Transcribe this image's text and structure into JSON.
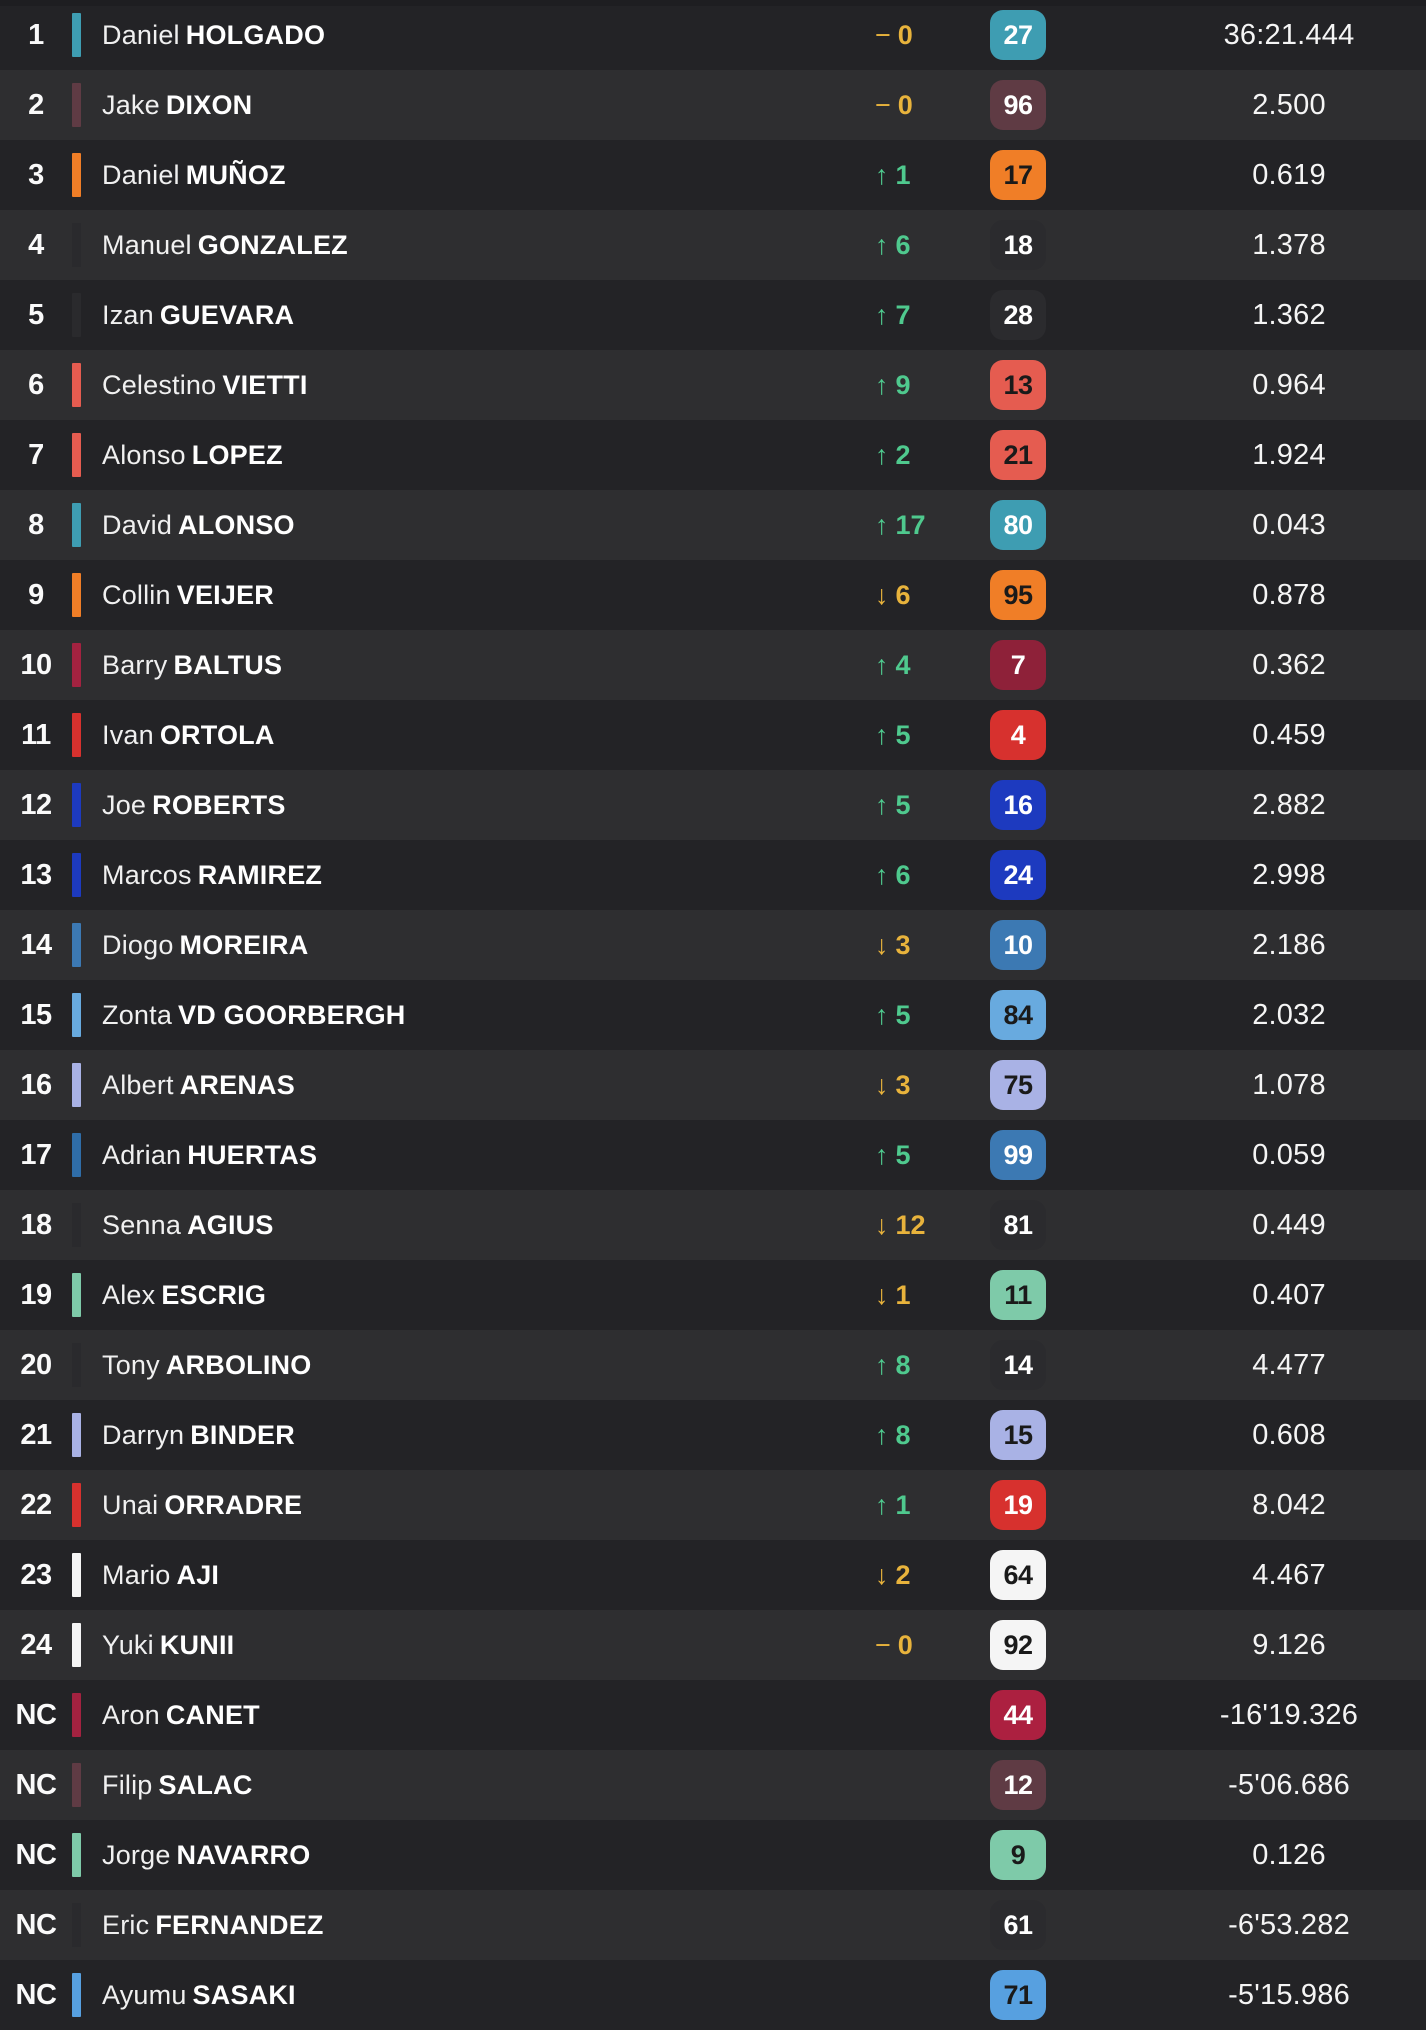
{
  "palette": {
    "row_dark": "#232326",
    "row_light": "#2E2E30",
    "up_green": "#4FC98E",
    "down_amber": "#E8B33C",
    "teal": "#3E9DB2",
    "maroon": "#5F3B44",
    "orange": "#F07E27",
    "salmon": "#E55C50",
    "crimson": "#A32240",
    "red": "#D7312E",
    "royal_blue": "#1D3ABF",
    "steel_blue": "#3C79B3",
    "light_blue": "#68AADF",
    "lavender": "#A9B2E5",
    "mint": "#7ECAA9",
    "white": "#F5F5F5",
    "neutral_dark": "#2B2B2E"
  },
  "list": {
    "rows": [
      {
        "pos": "1",
        "first": "Daniel",
        "last": "HOLGADO",
        "change_arrow": "−",
        "change_value": "0",
        "change_color": "#E8B33C",
        "number": "27",
        "badge_bg": "#3E9DB2",
        "badge_fg": "#FFFFFF",
        "stripe_color": "#3E9DB2",
        "time": "36:21.444"
      },
      {
        "pos": "2",
        "first": "Jake",
        "last": "DIXON",
        "change_arrow": "−",
        "change_value": "0",
        "change_color": "#E8B33C",
        "number": "96",
        "badge_bg": "#5F3B44",
        "badge_fg": "#FFFFFF",
        "stripe_color": "#5F3B44",
        "time": "2.500"
      },
      {
        "pos": "3",
        "first": "Daniel",
        "last": "MUÑOZ",
        "change_arrow": "↑",
        "change_value": "1",
        "change_color": "#4FC98E",
        "number": "17",
        "badge_bg": "#F07E27",
        "badge_fg": "#1A1A1A",
        "stripe_color": "#F07E27",
        "time": "0.619"
      },
      {
        "pos": "4",
        "first": "Manuel",
        "last": "GONZALEZ",
        "change_arrow": "↑",
        "change_value": "6",
        "change_color": "#4FC98E",
        "number": "18",
        "badge_bg": "#2B2B2E",
        "badge_fg": "#FFFFFF",
        "stripe_color": "#2A2A2D",
        "time": "1.378"
      },
      {
        "pos": "5",
        "first": "Izan",
        "last": "GUEVARA",
        "change_arrow": "↑",
        "change_value": "7",
        "change_color": "#4FC98E",
        "number": "28",
        "badge_bg": "#2B2B2E",
        "badge_fg": "#FFFFFF",
        "stripe_color": "#2A2A2D",
        "time": "1.362"
      },
      {
        "pos": "6",
        "first": "Celestino",
        "last": "VIETTI",
        "change_arrow": "↑",
        "change_value": "9",
        "change_color": "#4FC98E",
        "number": "13",
        "badge_bg": "#E55C50",
        "badge_fg": "#1A1A1A",
        "stripe_color": "#E55C50",
        "time": "0.964"
      },
      {
        "pos": "7",
        "first": "Alonso",
        "last": "LOPEZ",
        "change_arrow": "↑",
        "change_value": "2",
        "change_color": "#4FC98E",
        "number": "21",
        "badge_bg": "#E55C50",
        "badge_fg": "#1A1A1A",
        "stripe_color": "#E55C50",
        "time": "1.924"
      },
      {
        "pos": "8",
        "first": "David",
        "last": "ALONSO",
        "change_arrow": "↑",
        "change_value": "17",
        "change_color": "#4FC98E",
        "number": "80",
        "badge_bg": "#3E9DB2",
        "badge_fg": "#FFFFFF",
        "stripe_color": "#3E9DB2",
        "time": "0.043"
      },
      {
        "pos": "9",
        "first": "Collin",
        "last": "VEIJER",
        "change_arrow": "↓",
        "change_value": "6",
        "change_color": "#E8B33C",
        "number": "95",
        "badge_bg": "#F07E27",
        "badge_fg": "#1A1A1A",
        "stripe_color": "#F07E27",
        "time": "0.878"
      },
      {
        "pos": "10",
        "first": "Barry",
        "last": "BALTUS",
        "change_arrow": "↑",
        "change_value": "4",
        "change_color": "#4FC98E",
        "number": "7",
        "badge_bg": "#8E2139",
        "badge_fg": "#FFFFFF",
        "stripe_color": "#A32240",
        "time": "0.362"
      },
      {
        "pos": "11",
        "first": "Ivan",
        "last": "ORTOLA",
        "change_arrow": "↑",
        "change_value": "5",
        "change_color": "#4FC98E",
        "number": "4",
        "badge_bg": "#D7312E",
        "badge_fg": "#FFFFFF",
        "stripe_color": "#D7312E",
        "time": "0.459"
      },
      {
        "pos": "12",
        "first": "Joe",
        "last": "ROBERTS",
        "change_arrow": "↑",
        "change_value": "5",
        "change_color": "#4FC98E",
        "number": "16",
        "badge_bg": "#1D3ABF",
        "badge_fg": "#FFFFFF",
        "stripe_color": "#1D3ABF",
        "time": "2.882"
      },
      {
        "pos": "13",
        "first": "Marcos",
        "last": "RAMIREZ",
        "change_arrow": "↑",
        "change_value": "6",
        "change_color": "#4FC98E",
        "number": "24",
        "badge_bg": "#1D3ABF",
        "badge_fg": "#FFFFFF",
        "stripe_color": "#1D3ABF",
        "time": "2.998"
      },
      {
        "pos": "14",
        "first": "Diogo",
        "last": "MOREIRA",
        "change_arrow": "↓",
        "change_value": "3",
        "change_color": "#E8B33C",
        "number": "10",
        "badge_bg": "#3C79B3",
        "badge_fg": "#FFFFFF",
        "stripe_color": "#3C79B3",
        "time": "2.186"
      },
      {
        "pos": "15",
        "first": "Zonta",
        "last": "VD GOORBERGH",
        "change_arrow": "↑",
        "change_value": "5",
        "change_color": "#4FC98E",
        "number": "84",
        "badge_bg": "#68AADF",
        "badge_fg": "#1A1A1A",
        "stripe_color": "#68AADF",
        "time": "2.032"
      },
      {
        "pos": "16",
        "first": "Albert",
        "last": "ARENAS",
        "change_arrow": "↓",
        "change_value": "3",
        "change_color": "#E8B33C",
        "number": "75",
        "badge_bg": "#A9B2E5",
        "badge_fg": "#1A1A1A",
        "stripe_color": "#A9B2E5",
        "time": "1.078"
      },
      {
        "pos": "17",
        "first": "Adrian",
        "last": "HUERTAS",
        "change_arrow": "↑",
        "change_value": "5",
        "change_color": "#4FC98E",
        "number": "99",
        "badge_bg": "#3C79B3",
        "badge_fg": "#FFFFFF",
        "stripe_color": "#2F6DA8",
        "time": "0.059"
      },
      {
        "pos": "18",
        "first": "Senna",
        "last": "AGIUS",
        "change_arrow": "↓",
        "change_value": "12",
        "change_color": "#E8B33C",
        "number": "81",
        "badge_bg": "#2B2B2E",
        "badge_fg": "#FFFFFF",
        "stripe_color": "#2A2A2D",
        "time": "0.449"
      },
      {
        "pos": "19",
        "first": "Alex",
        "last": "ESCRIG",
        "change_arrow": "↓",
        "change_value": "1",
        "change_color": "#E8B33C",
        "number": "11",
        "badge_bg": "#7ECAA9",
        "badge_fg": "#1A1A1A",
        "stripe_color": "#7ECAA9",
        "time": "0.407"
      },
      {
        "pos": "20",
        "first": "Tony",
        "last": "ARBOLINO",
        "change_arrow": "↑",
        "change_value": "8",
        "change_color": "#4FC98E",
        "number": "14",
        "badge_bg": "#2B2B2E",
        "badge_fg": "#FFFFFF",
        "stripe_color": "#2A2A2D",
        "time": "4.477"
      },
      {
        "pos": "21",
        "first": "Darryn",
        "last": "BINDER",
        "change_arrow": "↑",
        "change_value": "8",
        "change_color": "#4FC98E",
        "number": "15",
        "badge_bg": "#A9B2E5",
        "badge_fg": "#1A1A1A",
        "stripe_color": "#A9B2E5",
        "time": "0.608"
      },
      {
        "pos": "22",
        "first": "Unai",
        "last": "ORRADRE",
        "change_arrow": "↑",
        "change_value": "1",
        "change_color": "#4FC98E",
        "number": "19",
        "badge_bg": "#D7312E",
        "badge_fg": "#FFFFFF",
        "stripe_color": "#D7312E",
        "time": "8.042"
      },
      {
        "pos": "23",
        "first": "Mario",
        "last": "AJI",
        "change_arrow": "↓",
        "change_value": "2",
        "change_color": "#E8B33C",
        "number": "64",
        "badge_bg": "#F5F5F5",
        "badge_fg": "#1A1A1A",
        "stripe_color": "#F5F5F5",
        "time": "4.467"
      },
      {
        "pos": "24",
        "first": "Yuki",
        "last": "KUNII",
        "change_arrow": "−",
        "change_value": "0",
        "change_color": "#E8B33C",
        "number": "92",
        "badge_bg": "#F5F5F5",
        "badge_fg": "#1A1A1A",
        "stripe_color": "#F5F5F5",
        "time": "9.126"
      },
      {
        "pos": "NC",
        "first": "Aron",
        "last": "CANET",
        "change_arrow": "",
        "change_value": "",
        "change_color": "",
        "number": "44",
        "badge_bg": "#AC2040",
        "badge_fg": "#FFFFFF",
        "stripe_color": "#A32240",
        "time": "-16'19.326"
      },
      {
        "pos": "NC",
        "first": "Filip",
        "last": "SALAC",
        "change_arrow": "",
        "change_value": "",
        "change_color": "",
        "number": "12",
        "badge_bg": "#5F3B44",
        "badge_fg": "#FFFFFF",
        "stripe_color": "#5F3B44",
        "time": "-5'06.686"
      },
      {
        "pos": "NC",
        "first": "Jorge",
        "last": "NAVARRO",
        "change_arrow": "",
        "change_value": "",
        "change_color": "",
        "number": "9",
        "badge_bg": "#7ECAA9",
        "badge_fg": "#1A1A1A",
        "stripe_color": "#7ECAA9",
        "time": "0.126"
      },
      {
        "pos": "NC",
        "first": "Eric",
        "last": "FERNANDEZ",
        "change_arrow": "",
        "change_value": "",
        "change_color": "",
        "number": "61",
        "badge_bg": "#2B2B2E",
        "badge_fg": "#FFFFFF",
        "stripe_color": "#2A2A2D",
        "time": "-6'53.282"
      },
      {
        "pos": "NC",
        "first": "Ayumu",
        "last": "SASAKI",
        "change_arrow": "",
        "change_value": "",
        "change_color": "",
        "number": "71",
        "badge_bg": "#57A0E0",
        "badge_fg": "#1A1A1A",
        "stripe_color": "#57A0E0",
        "time": "-5'15.986"
      }
    ]
  }
}
